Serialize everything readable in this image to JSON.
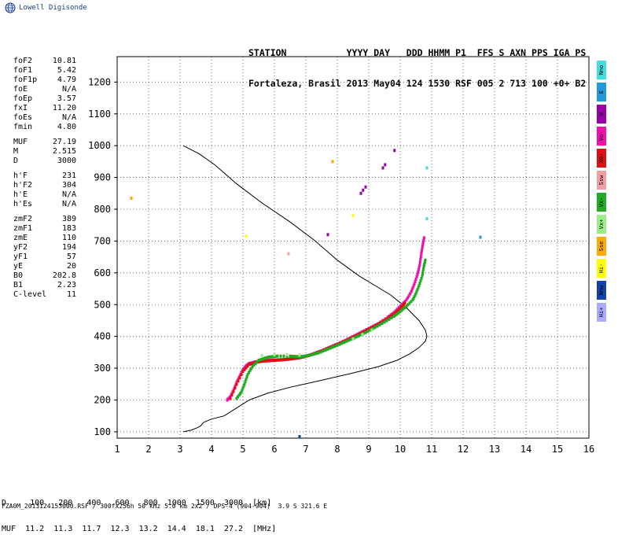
{
  "brand": {
    "text": "Lowell Digisonde",
    "icon": "globe-icon",
    "color": "#1a3d8f"
  },
  "header": {
    "line1": "STATION           YYYY DAY   DDD HHMM P1  FFS S AXN PPS IGA PS",
    "line2": "Fortaleza, Brasil 2013 May04 124 1530 RSF 005 2 713 100 +0+ B2"
  },
  "params": [
    [
      {
        "label": "foF2",
        "value": "10.81"
      },
      {
        "label": "foF1",
        "value": "5.42"
      },
      {
        "label": "foF1p",
        "value": "4.79"
      },
      {
        "label": "foE",
        "value": "N/A"
      },
      {
        "label": "foEp",
        "value": "3.57"
      },
      {
        "label": "fxI",
        "value": "11.20"
      },
      {
        "label": "foEs",
        "value": "N/A"
      },
      {
        "label": "fmin",
        "value": "4.80"
      }
    ],
    [
      {
        "label": "MUF",
        "value": "27.19"
      },
      {
        "label": "M",
        "value": "2.515"
      },
      {
        "label": "D",
        "value": "3000"
      }
    ],
    [
      {
        "label": "h'F",
        "value": "231"
      },
      {
        "label": "h'F2",
        "value": "304"
      },
      {
        "label": "h'E",
        "value": "N/A"
      },
      {
        "label": "h'Es",
        "value": "N/A"
      }
    ],
    [
      {
        "label": "zmF2",
        "value": "389"
      },
      {
        "label": "zmF1",
        "value": "183"
      },
      {
        "label": "zmE",
        "value": "110"
      },
      {
        "label": "yF2",
        "value": "194"
      },
      {
        "label": "yF1",
        "value": "57"
      },
      {
        "label": "yE",
        "value": "20"
      },
      {
        "label": "B0",
        "value": "202.8"
      },
      {
        "label": "B1",
        "value": "2.23"
      },
      {
        "label": "C-level",
        "value": "11"
      }
    ]
  ],
  "legend": [
    {
      "label": "Nno",
      "color": "#44dddd"
    },
    {
      "label": "E",
      "color": "#2299dd"
    },
    {
      "label": "W",
      "color": "#9900aa"
    },
    {
      "label": "Vo-",
      "color": "#ee11aa"
    },
    {
      "label": "X0-",
      "color": "#dd1111"
    },
    {
      "label": "Ssw",
      "color": "#f0a0a0"
    },
    {
      "label": "Vx-",
      "color": "#22aa22"
    },
    {
      "label": "Vx+",
      "color": "#99ee88"
    },
    {
      "label": "Sse",
      "color": "#ffaa00"
    },
    {
      "label": "Hi-",
      "color": "#ffff00"
    },
    {
      "label": "Nnw",
      "color": "#1144aa"
    },
    {
      "label": "Hi+",
      "color": "#aaaaff"
    }
  ],
  "muf_table": {
    "d_line": "D     100   200   400   600   800  1000  1500  3000  [km]",
    "muf_line": "MUF  11.2  11.3  11.7  12.3  13.2  14.4  18.1  27.2  [MHz]"
  },
  "footer": "FZA0M_2013124153000.RSF / 300fx256h 50 kHz 5.0 km 2x2 / DPS-4 (904-904)  3.9 S 321.6 E",
  "chart_data": {
    "type": "scatter",
    "xlim": [
      1,
      16
    ],
    "ylim": [
      80,
      1280
    ],
    "x_ticks": [
      1,
      2,
      3,
      4,
      5,
      6,
      7,
      8,
      9,
      10,
      11,
      12,
      13,
      14,
      15,
      16
    ],
    "y_ticks": [
      100,
      200,
      300,
      400,
      500,
      600,
      700,
      800,
      900,
      1000,
      1100,
      1200
    ],
    "grid": true,
    "profile": {
      "color": "#000000",
      "points": [
        [
          3.1,
          100
        ],
        [
          3.35,
          105
        ],
        [
          3.55,
          113
        ],
        [
          3.65,
          118
        ],
        [
          3.75,
          130
        ],
        [
          4.0,
          140
        ],
        [
          4.4,
          150
        ],
        [
          4.8,
          175
        ],
        [
          5.2,
          200
        ],
        [
          5.8,
          222
        ],
        [
          6.5,
          240
        ],
        [
          7.5,
          262
        ],
        [
          8.5,
          285
        ],
        [
          9.3,
          305
        ],
        [
          9.9,
          325
        ],
        [
          10.3,
          345
        ],
        [
          10.6,
          365
        ],
        [
          10.8,
          385
        ],
        [
          10.85,
          400
        ],
        [
          10.8,
          420
        ],
        [
          10.6,
          450
        ],
        [
          10.2,
          490
        ],
        [
          9.7,
          530
        ],
        [
          9.2,
          560
        ],
        [
          8.7,
          590
        ],
        [
          8.0,
          640
        ],
        [
          7.3,
          700
        ],
        [
          6.5,
          760
        ],
        [
          5.6,
          820
        ],
        [
          4.8,
          880
        ],
        [
          4.1,
          940
        ],
        [
          3.6,
          975
        ],
        [
          3.1,
          1000
        ]
      ]
    },
    "traces": [
      {
        "name": "Vo-",
        "color": "#ee11aa",
        "points": [
          [
            4.5,
            200
          ],
          [
            4.6,
            210
          ],
          [
            4.7,
            230
          ],
          [
            4.8,
            255
          ],
          [
            4.9,
            275
          ],
          [
            5.0,
            295
          ],
          [
            5.1,
            307
          ],
          [
            5.2,
            315
          ],
          [
            5.4,
            320
          ],
          [
            5.6,
            323
          ],
          [
            5.8,
            325
          ],
          [
            6.0,
            326
          ],
          [
            6.3,
            327
          ],
          [
            6.6,
            330
          ],
          [
            6.9,
            335
          ],
          [
            7.2,
            344
          ],
          [
            7.5,
            355
          ],
          [
            7.8,
            368
          ],
          [
            8.1,
            380
          ],
          [
            8.4,
            395
          ],
          [
            8.7,
            410
          ],
          [
            9.0,
            425
          ],
          [
            9.3,
            440
          ],
          [
            9.6,
            460
          ],
          [
            9.8,
            475
          ],
          [
            10.0,
            495
          ],
          [
            10.2,
            515
          ],
          [
            10.35,
            540
          ],
          [
            10.45,
            565
          ],
          [
            10.55,
            595
          ],
          [
            10.62,
            625
          ],
          [
            10.67,
            660
          ],
          [
            10.72,
            690
          ],
          [
            10.76,
            710
          ]
        ]
      },
      {
        "name": "X0-",
        "color": "#dd1111",
        "points": [
          [
            4.6,
            205
          ],
          [
            4.8,
            250
          ],
          [
            5.0,
            290
          ],
          [
            5.2,
            312
          ],
          [
            5.4,
            318
          ],
          [
            5.6,
            322
          ],
          [
            5.9,
            324
          ],
          [
            6.2,
            326
          ],
          [
            6.5,
            329
          ],
          [
            6.8,
            333
          ],
          [
            7.1,
            340
          ],
          [
            7.4,
            350
          ],
          [
            7.7,
            362
          ],
          [
            8.0,
            375
          ],
          [
            8.3,
            388
          ],
          [
            8.6,
            402
          ],
          [
            8.9,
            418
          ],
          [
            9.2,
            433
          ],
          [
            9.5,
            450
          ],
          [
            9.8,
            470
          ],
          [
            10.0,
            488
          ],
          [
            10.15,
            505
          ]
        ]
      },
      {
        "name": "Vx-",
        "color": "#22aa22",
        "points": [
          [
            4.8,
            205
          ],
          [
            4.95,
            225
          ],
          [
            5.05,
            250
          ],
          [
            5.15,
            280
          ],
          [
            5.3,
            305
          ],
          [
            5.5,
            325
          ],
          [
            5.8,
            335
          ],
          [
            6.1,
            338
          ],
          [
            6.5,
            338
          ],
          [
            6.8,
            336
          ],
          [
            7.1,
            340
          ],
          [
            7.4,
            348
          ],
          [
            7.7,
            360
          ],
          [
            8.0,
            372
          ],
          [
            8.3,
            385
          ],
          [
            8.6,
            398
          ],
          [
            8.9,
            412
          ],
          [
            9.2,
            428
          ],
          [
            9.5,
            445
          ],
          [
            9.8,
            463
          ],
          [
            10.0,
            478
          ],
          [
            10.2,
            495
          ],
          [
            10.4,
            515
          ],
          [
            10.5,
            535
          ],
          [
            10.6,
            560
          ],
          [
            10.7,
            590
          ],
          [
            10.75,
            620
          ],
          [
            10.8,
            640
          ]
        ]
      },
      {
        "name": "Vx+",
        "color": "#99ee88",
        "points": [
          [
            5.6,
            340
          ],
          [
            6.0,
            342
          ],
          [
            6.4,
            343
          ],
          [
            6.8,
            341
          ],
          [
            8.5,
            392
          ],
          [
            8.8,
            406
          ],
          [
            9.1,
            420
          ]
        ]
      },
      {
        "name": "W",
        "color": "#9900aa",
        "points": [
          [
            7.7,
            720
          ],
          [
            8.75,
            850
          ],
          [
            8.82,
            860
          ],
          [
            8.9,
            870
          ],
          [
            9.45,
            930
          ],
          [
            9.52,
            940
          ],
          [
            9.82,
            985
          ]
        ]
      },
      {
        "name": "Sse",
        "color": "#ffaa00",
        "points": [
          [
            1.45,
            835
          ],
          [
            7.85,
            950
          ]
        ]
      },
      {
        "name": "E",
        "color": "#2299dd",
        "points": [
          [
            12.55,
            712
          ]
        ]
      },
      {
        "name": "Nno",
        "color": "#44dddd",
        "points": [
          [
            10.85,
            770
          ],
          [
            10.85,
            930
          ]
        ]
      },
      {
        "name": "Ssw",
        "color": "#f0a0a0",
        "points": [
          [
            6.45,
            660
          ]
        ]
      },
      {
        "name": "Nnw",
        "color": "#1144aa",
        "points": [
          [
            6.8,
            85
          ]
        ]
      },
      {
        "name": "Hi-",
        "color": "#ffff00",
        "points": [
          [
            5.1,
            715
          ],
          [
            8.5,
            780
          ]
        ]
      }
    ]
  }
}
